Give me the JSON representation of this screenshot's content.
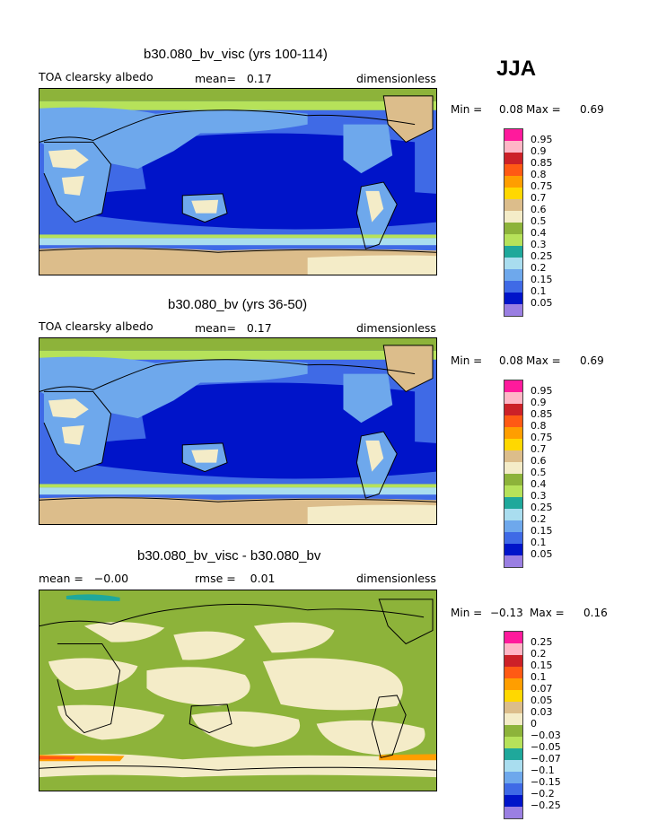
{
  "season": "JJA",
  "panels": [
    {
      "title": "b30.080_bv_visc (yrs 100-114)",
      "left_label": "TOA clearsky albedo",
      "middle_label": "mean=   0.17",
      "right_label": "dimensionless",
      "min_label": "Min =",
      "min_value": "0.08",
      "max_label": "Max =",
      "max_value": "0.69",
      "colorbar_labels": [
        "0.95",
        "0.9",
        "0.85",
        "0.8",
        "0.75",
        "0.7",
        "0.6",
        "0.5",
        "0.4",
        "0.3",
        "0.25",
        "0.2",
        "0.15",
        "0.1",
        "0.05"
      ],
      "colorbar_colors": [
        "#ff1a9c",
        "#ffb6c6",
        "#cc2128",
        "#ff5a14",
        "#ff9e00",
        "#ffd800",
        "#dcbd8b",
        "#f4ecc8",
        "#8db33a",
        "#b6e25a",
        "#1fa89b",
        "#a9ddef",
        "#6ea8ec",
        "#3f6ae6",
        "#0014c9",
        "#9a7fe2"
      ]
    },
    {
      "title": "b30.080_bv (yrs 36-50)",
      "left_label": "TOA clearsky albedo",
      "middle_label": "mean=   0.17",
      "right_label": "dimensionless",
      "min_label": "Min =",
      "min_value": "0.08",
      "max_label": "Max =",
      "max_value": "0.69",
      "colorbar_labels": [
        "0.95",
        "0.9",
        "0.85",
        "0.8",
        "0.75",
        "0.7",
        "0.6",
        "0.5",
        "0.4",
        "0.3",
        "0.25",
        "0.2",
        "0.15",
        "0.1",
        "0.05"
      ],
      "colorbar_colors": [
        "#ff1a9c",
        "#ffb6c6",
        "#cc2128",
        "#ff5a14",
        "#ff9e00",
        "#ffd800",
        "#dcbd8b",
        "#f4ecc8",
        "#8db33a",
        "#b6e25a",
        "#1fa89b",
        "#a9ddef",
        "#6ea8ec",
        "#3f6ae6",
        "#0014c9",
        "#9a7fe2"
      ]
    },
    {
      "title": "b30.080_bv_visc - b30.080_bv",
      "left_label": "mean =   −0.00",
      "middle_label": "rmse =    0.01",
      "right_label": "dimensionless",
      "min_label": "Min =",
      "min_value": "−0.13",
      "max_label": "Max =",
      "max_value": "0.16",
      "colorbar_labels": [
        "0.25",
        "0.2",
        "0.15",
        "0.1",
        "0.07",
        "0.05",
        "0.03",
        "0",
        "−0.03",
        "−0.05",
        "−0.07",
        "−0.1",
        "−0.15",
        "−0.2",
        "−0.25"
      ],
      "colorbar_colors": [
        "#ff1a9c",
        "#ffb6c6",
        "#cc2128",
        "#ff5a14",
        "#ff9e00",
        "#ffd800",
        "#dcbd8b",
        "#f4ecc8",
        "#8db33a",
        "#b6e25a",
        "#1fa89b",
        "#a9ddef",
        "#6ea8ec",
        "#3f6ae6",
        "#0014c9",
        "#9a7fe2"
      ]
    }
  ],
  "map_colors": {
    "ocean_deep": "#0014c9",
    "ocean": "#3f6ae6",
    "shelf": "#6ea8ec",
    "land_low": "#a9ddef",
    "land_mid": "#f4ecc8",
    "snow": "#dcbd8b",
    "green": "#b6e25a",
    "olive": "#8db33a",
    "teal": "#1fa89b",
    "diff_pos": "#f4ecc8",
    "diff_neg": "#8db33a",
    "diff_hot": "#ff9e00",
    "diff_red": "#ff5a14"
  }
}
